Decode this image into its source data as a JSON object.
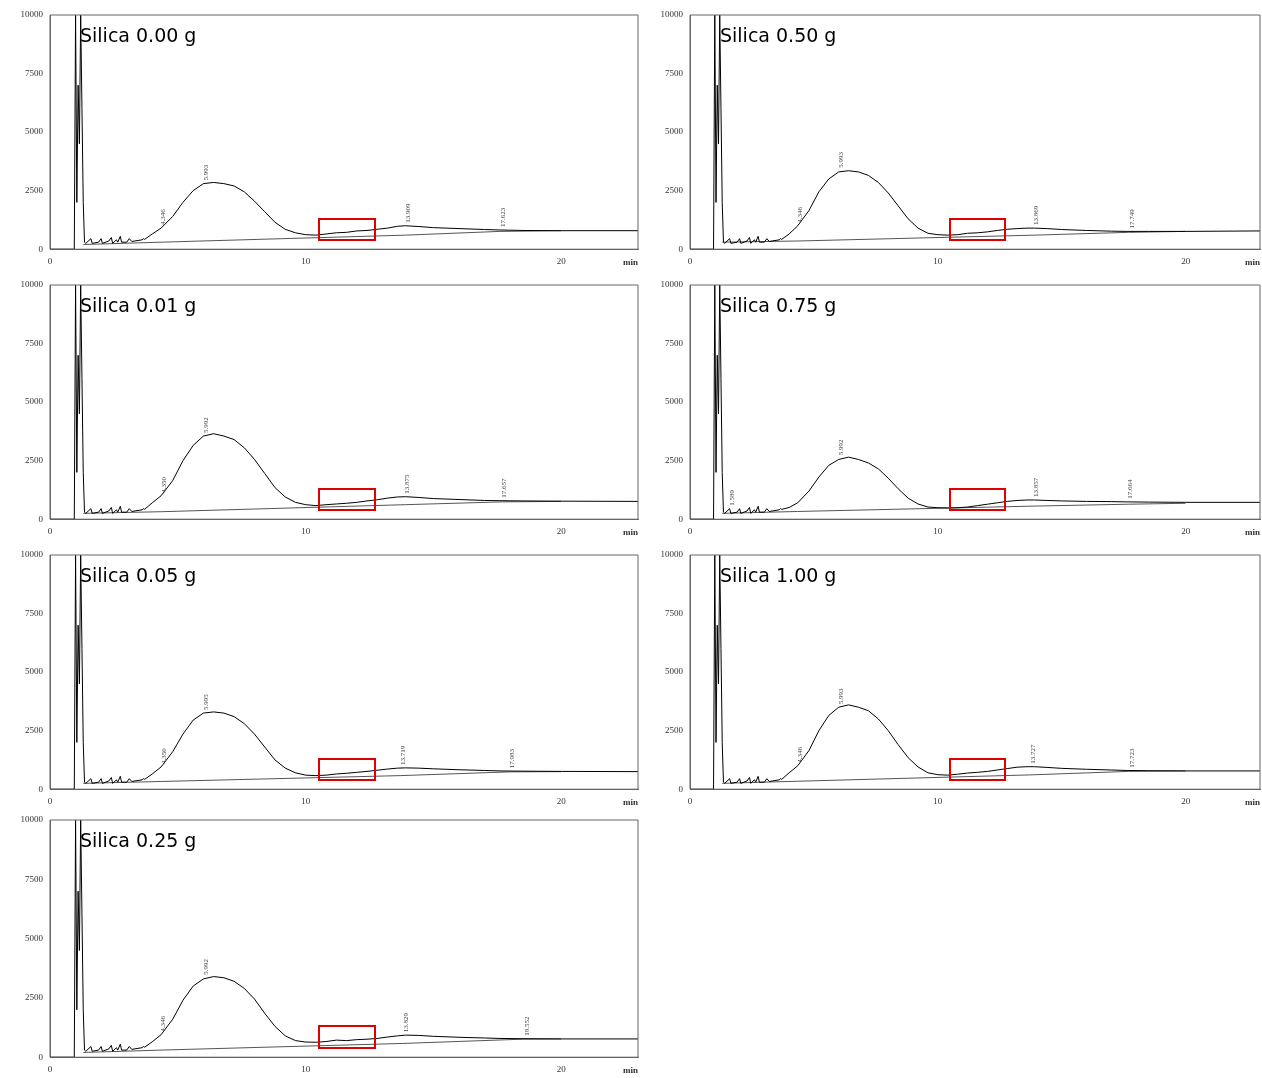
{
  "chart_data": [
    {
      "type": "line",
      "title": "Silica 0.00 g",
      "xlabel": "min",
      "xlim": [
        0,
        23
      ],
      "ylim": [
        0,
        10000
      ],
      "xticks": [
        0,
        10,
        20
      ],
      "yticks": [
        0,
        2500,
        5000,
        7500,
        10000
      ],
      "x": [
        0,
        0.95,
        1.0,
        1.05,
        1.1,
        1.15,
        1.2,
        1.25,
        1.3,
        1.35,
        1.4,
        1.6,
        1.65,
        1.9,
        2.0,
        2.05,
        2.3,
        2.4,
        2.45,
        2.6,
        2.65,
        2.75,
        2.8,
        3.0,
        3.1,
        3.2,
        3.6,
        3.65,
        3.7,
        4.0,
        4.346,
        4.8,
        5.2,
        5.6,
        6.0,
        6.4,
        6.8,
        7.2,
        7.6,
        8.0,
        8.4,
        8.8,
        9.2,
        9.6,
        10.0,
        10.4,
        10.8,
        11.2,
        11.6,
        12.0,
        12.4,
        12.8,
        13.2,
        13.6,
        13.9,
        14.4,
        15,
        16,
        17,
        17.6,
        18.5,
        20,
        23
      ],
      "series": [
        {
          "color": "#000000",
          "values": [
            0,
            0,
            10000,
            2000,
            7000,
            4500,
            10000,
            6000,
            2000,
            300,
            250,
            450,
            250,
            300,
            450,
            250,
            350,
            500,
            250,
            400,
            300,
            550,
            300,
            300,
            450,
            330,
            400,
            450,
            420,
            650,
            900,
            1400,
            2000,
            2500,
            2800,
            2850,
            2800,
            2700,
            2450,
            2050,
            1600,
            1150,
            850,
            700,
            620,
            600,
            650,
            700,
            720,
            780,
            800,
            850,
            900,
            980,
            1000,
            970,
            920,
            880,
            840,
            820,
            800,
            790,
            790
          ]
        },
        {
          "color": "#555555",
          "x": [
            1.3,
            4.346,
            13.9,
            17.6,
            20
          ],
          "values": [
            200,
            300,
            600,
            760,
            790
          ]
        }
      ],
      "annotations": [
        {
          "text": "4.346",
          "x": 4.346,
          "y": 900
        },
        {
          "text": "5.993",
          "x": 5.993,
          "y": 2800
        },
        {
          "text": "13.909",
          "x": 13.909,
          "y": 1000
        },
        {
          "text": "17.623",
          "x": 17.623,
          "y": 820
        }
      ]
    },
    {
      "type": "line",
      "title": "Silica 0.50 g",
      "xlabel": "min",
      "xlim": [
        0,
        23
      ],
      "ylim": [
        0,
        10000
      ],
      "xticks": [
        0,
        10,
        20
      ],
      "yticks": [
        0,
        2500,
        5000,
        7500,
        10000
      ],
      "x": [
        0,
        0.95,
        1.0,
        1.05,
        1.1,
        1.15,
        1.2,
        1.25,
        1.3,
        1.35,
        1.4,
        1.6,
        1.65,
        1.9,
        2.0,
        2.05,
        2.3,
        2.4,
        2.45,
        2.6,
        2.65,
        2.75,
        2.8,
        3.0,
        3.1,
        3.2,
        3.6,
        3.65,
        3.7,
        4.0,
        4.346,
        4.8,
        5.2,
        5.6,
        6.0,
        6.4,
        6.8,
        7.2,
        7.6,
        8.0,
        8.4,
        8.8,
        9.2,
        9.6,
        10.0,
        10.4,
        10.8,
        11.2,
        11.6,
        12.0,
        12.4,
        12.8,
        13.2,
        13.6,
        13.9,
        14.4,
        15,
        16,
        17,
        17.6,
        18.5,
        20,
        23
      ],
      "series": [
        {
          "color": "#000000",
          "values": [
            0,
            0,
            10000,
            2000,
            7000,
            4500,
            10000,
            6000,
            2000,
            300,
            250,
            450,
            250,
            300,
            450,
            250,
            350,
            500,
            250,
            400,
            300,
            550,
            300,
            300,
            450,
            330,
            400,
            450,
            420,
            650,
            1000,
            1650,
            2450,
            3000,
            3300,
            3350,
            3300,
            3150,
            2850,
            2400,
            1850,
            1300,
            900,
            680,
            620,
            600,
            620,
            680,
            700,
            740,
            800,
            850,
            880,
            900,
            900,
            880,
            840,
            800,
            770,
            760,
            760,
            760,
            780
          ]
        },
        {
          "color": "#555555",
          "x": [
            1.3,
            4.346,
            13.9,
            17.7,
            20
          ],
          "values": [
            300,
            350,
            600,
            720,
            760
          ]
        }
      ],
      "annotations": [
        {
          "text": "4.346",
          "x": 4.346,
          "y": 1000
        },
        {
          "text": "5.993",
          "x": 5.993,
          "y": 3350
        },
        {
          "text": "13.869",
          "x": 13.869,
          "y": 900
        },
        {
          "text": "17.749",
          "x": 17.749,
          "y": 760
        }
      ]
    },
    {
      "type": "line",
      "title": "Silica 0.01 g",
      "xlabel": "min",
      "xlim": [
        0,
        23
      ],
      "ylim": [
        0,
        10000
      ],
      "xticks": [
        0,
        10,
        20
      ],
      "yticks": [
        0,
        2500,
        5000,
        7500,
        10000
      ],
      "x": [
        0,
        0.95,
        1.0,
        1.05,
        1.1,
        1.15,
        1.2,
        1.25,
        1.3,
        1.35,
        1.4,
        1.6,
        1.65,
        1.9,
        2.0,
        2.05,
        2.3,
        2.4,
        2.45,
        2.6,
        2.65,
        2.75,
        2.8,
        3.0,
        3.1,
        3.2,
        3.6,
        3.65,
        3.7,
        4.0,
        4.346,
        4.8,
        5.2,
        5.6,
        6.0,
        6.4,
        6.8,
        7.2,
        7.6,
        8.0,
        8.4,
        8.8,
        9.2,
        9.6,
        10.0,
        10.4,
        10.8,
        11.2,
        11.6,
        12.0,
        12.4,
        12.8,
        13.2,
        13.6,
        13.9,
        14.4,
        15,
        16,
        17,
        17.6,
        18.5,
        20,
        23
      ],
      "series": [
        {
          "color": "#000000",
          "values": [
            0,
            0,
            10000,
            2000,
            7000,
            4500,
            10000,
            6000,
            2000,
            300,
            250,
            450,
            250,
            300,
            450,
            250,
            350,
            500,
            250,
            400,
            300,
            550,
            300,
            300,
            450,
            330,
            400,
            450,
            420,
            700,
            1000,
            1650,
            2500,
            3150,
            3550,
            3650,
            3550,
            3400,
            3050,
            2550,
            1950,
            1350,
            950,
            720,
            620,
            580,
            620,
            650,
            680,
            720,
            780,
            830,
            900,
            950,
            960,
            930,
            880,
            840,
            800,
            790,
            780,
            770,
            760
          ]
        },
        {
          "color": "#555555",
          "x": [
            1.3,
            4.35,
            13.9,
            17.7,
            20
          ],
          "values": [
            250,
            320,
            620,
            740,
            760
          ]
        }
      ],
      "annotations": [
        {
          "text": "4.350",
          "x": 4.35,
          "y": 1000
        },
        {
          "text": "5.992",
          "x": 5.992,
          "y": 3550
        },
        {
          "text": "13.875",
          "x": 13.875,
          "y": 960
        },
        {
          "text": "17.657",
          "x": 17.657,
          "y": 790
        }
      ]
    },
    {
      "type": "line",
      "title": "Silica 0.75 g",
      "xlabel": "min",
      "xlim": [
        0,
        23
      ],
      "ylim": [
        0,
        10000
      ],
      "xticks": [
        0,
        10,
        20
      ],
      "yticks": [
        0,
        2500,
        5000,
        7500,
        10000
      ],
      "x": [
        0,
        0.95,
        1.0,
        1.05,
        1.1,
        1.15,
        1.2,
        1.25,
        1.3,
        1.35,
        1.4,
        1.6,
        1.65,
        1.9,
        2.0,
        2.05,
        2.3,
        2.4,
        2.45,
        2.6,
        2.65,
        2.75,
        2.8,
        3.0,
        3.1,
        3.2,
        3.6,
        3.65,
        3.7,
        4.0,
        4.346,
        4.8,
        5.2,
        5.6,
        6.0,
        6.4,
        6.8,
        7.2,
        7.6,
        8.0,
        8.4,
        8.8,
        9.2,
        9.6,
        10.0,
        10.4,
        10.8,
        11.2,
        11.6,
        12.0,
        12.4,
        12.8,
        13.2,
        13.6,
        13.9,
        14.4,
        15,
        16,
        17,
        17.6,
        18.5,
        20,
        23
      ],
      "series": [
        {
          "color": "#000000",
          "values": [
            0,
            0,
            10000,
            2000,
            7000,
            4500,
            10000,
            6000,
            2000,
            300,
            250,
            450,
            250,
            300,
            450,
            250,
            350,
            500,
            250,
            400,
            300,
            550,
            300,
            300,
            450,
            330,
            400,
            450,
            420,
            500,
            700,
            1200,
            1800,
            2300,
            2550,
            2650,
            2550,
            2400,
            2150,
            1750,
            1300,
            900,
            650,
            520,
            490,
            480,
            490,
            520,
            580,
            640,
            700,
            760,
            800,
            820,
            820,
            800,
            780,
            760,
            750,
            740,
            730,
            720,
            720
          ]
        },
        {
          "color": "#555555",
          "x": [
            1.3,
            4.346,
            13.9,
            17.7,
            20
          ],
          "values": [
            250,
            330,
            560,
            640,
            680
          ]
        }
      ],
      "annotations": [
        {
          "text": "1.589",
          "x": 1.589,
          "y": 450
        },
        {
          "text": "5.992",
          "x": 5.992,
          "y": 2600
        },
        {
          "text": "13.857",
          "x": 13.857,
          "y": 820
        },
        {
          "text": "17.664",
          "x": 17.664,
          "y": 740
        }
      ]
    },
    {
      "type": "line",
      "title": "Silica 0.05 g",
      "xlabel": "min",
      "xlim": [
        0,
        23
      ],
      "ylim": [
        0,
        10000
      ],
      "xticks": [
        0,
        10,
        20
      ],
      "yticks": [
        0,
        2500,
        5000,
        7500,
        10000
      ],
      "x": [
        0,
        0.95,
        1.0,
        1.05,
        1.1,
        1.15,
        1.2,
        1.25,
        1.3,
        1.35,
        1.4,
        1.6,
        1.65,
        1.9,
        2.0,
        2.05,
        2.3,
        2.4,
        2.45,
        2.6,
        2.65,
        2.75,
        2.8,
        3.0,
        3.1,
        3.2,
        3.6,
        3.65,
        3.7,
        4.0,
        4.346,
        4.8,
        5.2,
        5.6,
        6.0,
        6.4,
        6.8,
        7.2,
        7.6,
        8.0,
        8.4,
        8.8,
        9.2,
        9.6,
        10.0,
        10.4,
        10.8,
        11.2,
        11.6,
        12.0,
        12.4,
        12.8,
        13.2,
        13.6,
        13.9,
        14.4,
        15,
        16,
        17,
        17.6,
        18.5,
        20,
        23
      ],
      "series": [
        {
          "color": "#000000",
          "values": [
            0,
            0,
            10000,
            2000,
            7000,
            4500,
            10000,
            6000,
            2000,
            300,
            250,
            450,
            250,
            300,
            450,
            250,
            350,
            500,
            250,
            400,
            300,
            550,
            300,
            300,
            450,
            330,
            400,
            450,
            420,
            650,
            950,
            1600,
            2350,
            2950,
            3250,
            3300,
            3250,
            3100,
            2800,
            2350,
            1800,
            1250,
            900,
            700,
            600,
            580,
            600,
            650,
            680,
            720,
            760,
            810,
            860,
            900,
            910,
            900,
            870,
            830,
            800,
            780,
            770,
            760,
            750
          ]
        },
        {
          "color": "#555555",
          "x": [
            1.3,
            4.35,
            13.7,
            18.0,
            20
          ],
          "values": [
            250,
            330,
            580,
            740,
            750
          ]
        }
      ],
      "annotations": [
        {
          "text": "4.350",
          "x": 4.35,
          "y": 950
        },
        {
          "text": "5.995",
          "x": 5.995,
          "y": 3250
        },
        {
          "text": "13.719",
          "x": 13.719,
          "y": 900
        },
        {
          "text": "17.983",
          "x": 17.983,
          "y": 770
        }
      ]
    },
    {
      "type": "line",
      "title": "Silica 1.00 g",
      "xlabel": "min",
      "xlim": [
        0,
        23
      ],
      "ylim": [
        0,
        10000
      ],
      "xticks": [
        0,
        10,
        20
      ],
      "yticks": [
        0,
        2500,
        5000,
        7500,
        10000
      ],
      "x": [
        0,
        0.95,
        1.0,
        1.05,
        1.1,
        1.15,
        1.2,
        1.25,
        1.3,
        1.35,
        1.4,
        1.6,
        1.65,
        1.9,
        2.0,
        2.05,
        2.3,
        2.4,
        2.45,
        2.6,
        2.65,
        2.75,
        2.8,
        3.0,
        3.1,
        3.2,
        3.6,
        3.65,
        3.7,
        4.0,
        4.346,
        4.8,
        5.2,
        5.6,
        6.0,
        6.4,
        6.8,
        7.2,
        7.6,
        8.0,
        8.4,
        8.8,
        9.2,
        9.6,
        10.0,
        10.4,
        10.8,
        11.2,
        11.6,
        12.0,
        12.4,
        12.8,
        13.2,
        13.6,
        13.9,
        14.4,
        15,
        16,
        17,
        17.6,
        18.5,
        20,
        23
      ],
      "series": [
        {
          "color": "#000000",
          "values": [
            0,
            0,
            10000,
            2000,
            7000,
            4500,
            10000,
            6000,
            2000,
            300,
            250,
            450,
            250,
            300,
            450,
            250,
            350,
            500,
            250,
            400,
            300,
            550,
            300,
            300,
            450,
            330,
            400,
            450,
            420,
            700,
            1000,
            1650,
            2500,
            3150,
            3500,
            3600,
            3500,
            3350,
            3000,
            2500,
            1900,
            1350,
            950,
            700,
            620,
            600,
            640,
            690,
            720,
            760,
            820,
            880,
            940,
            960,
            960,
            930,
            890,
            850,
            820,
            800,
            790,
            780,
            780
          ]
        },
        {
          "color": "#555555",
          "x": [
            1.3,
            4.346,
            13.7,
            17.7,
            20
          ],
          "values": [
            250,
            340,
            610,
            760,
            780
          ]
        }
      ],
      "annotations": [
        {
          "text": "4.346",
          "x": 4.346,
          "y": 1000
        },
        {
          "text": "5.993",
          "x": 5.993,
          "y": 3500
        },
        {
          "text": "13.727",
          "x": 13.727,
          "y": 960
        },
        {
          "text": "17.723",
          "x": 17.723,
          "y": 790
        }
      ]
    },
    {
      "type": "line",
      "title": "Silica 0.25 g",
      "xlabel": "min",
      "xlim": [
        0,
        23
      ],
      "ylim": [
        0,
        10000
      ],
      "xticks": [
        0,
        10,
        20
      ],
      "yticks": [
        0,
        2500,
        5000,
        7500,
        10000
      ],
      "x": [
        0,
        0.95,
        1.0,
        1.05,
        1.1,
        1.15,
        1.2,
        1.25,
        1.3,
        1.35,
        1.4,
        1.6,
        1.65,
        1.9,
        2.0,
        2.05,
        2.3,
        2.4,
        2.45,
        2.6,
        2.65,
        2.75,
        2.8,
        3.0,
        3.1,
        3.2,
        3.6,
        3.65,
        3.7,
        4.0,
        4.346,
        4.8,
        5.2,
        5.6,
        6.0,
        6.4,
        6.8,
        7.2,
        7.6,
        8.0,
        8.4,
        8.8,
        9.2,
        9.6,
        10.0,
        10.4,
        10.8,
        11.2,
        11.6,
        12.0,
        12.4,
        12.8,
        13.2,
        13.6,
        13.9,
        14.4,
        15,
        16,
        17,
        17.6,
        18.5,
        20,
        23
      ],
      "series": [
        {
          "color": "#000000",
          "values": [
            0,
            0,
            10000,
            2000,
            7000,
            4500,
            10000,
            6000,
            2000,
            300,
            250,
            450,
            250,
            300,
            450,
            250,
            350,
            500,
            250,
            400,
            300,
            550,
            300,
            300,
            450,
            330,
            400,
            450,
            420,
            650,
            950,
            1600,
            2400,
            3000,
            3300,
            3400,
            3350,
            3200,
            2900,
            2450,
            1850,
            1300,
            900,
            700,
            640,
            630,
            660,
            720,
            700,
            740,
            760,
            790,
            850,
            900,
            930,
            920,
            880,
            840,
            810,
            790,
            780,
            770,
            770
          ]
        },
        {
          "color": "#555555",
          "x": [
            1.3,
            4.346,
            13.8,
            18.5,
            20
          ],
          "values": [
            200,
            300,
            580,
            760,
            770
          ]
        }
      ],
      "annotations": [
        {
          "text": "4.346",
          "x": 4.346,
          "y": 950
        },
        {
          "text": "5.992",
          "x": 5.992,
          "y": 3350
        },
        {
          "text": "13.829",
          "x": 13.829,
          "y": 930
        },
        {
          "text": "18.552",
          "x": 18.552,
          "y": 780
        }
      ]
    }
  ]
}
